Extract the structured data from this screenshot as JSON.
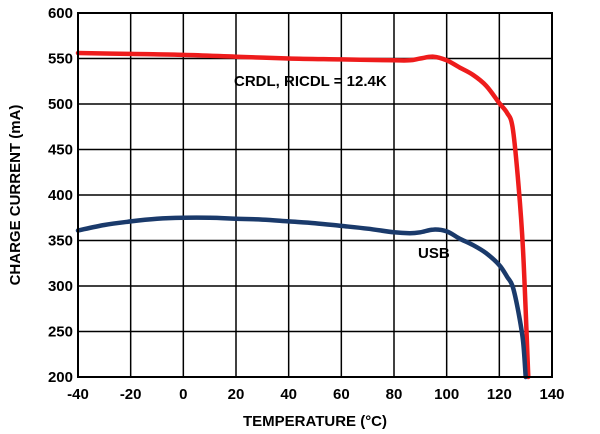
{
  "chart_data": {
    "type": "line",
    "xlabel": "TEMPERATURE (°C)",
    "ylabel": "CHARGE CURRENT (mA)",
    "xlim": [
      -40,
      140
    ],
    "ylim": [
      200,
      600
    ],
    "xticks": [
      -40,
      -20,
      0,
      20,
      40,
      60,
      80,
      100,
      120,
      140
    ],
    "yticks": [
      200,
      250,
      300,
      350,
      400,
      450,
      500,
      550,
      600
    ],
    "grid": true,
    "series": [
      {
        "name": "CRDL, RICDL = 12.4K",
        "color": "#ee1c1c",
        "x": [
          -40,
          -20,
          0,
          20,
          40,
          60,
          80,
          86,
          90,
          95,
          100,
          105,
          110,
          115,
          120,
          123,
          125,
          127,
          129,
          131
        ],
        "y": [
          556,
          555,
          554,
          552,
          550,
          549,
          548,
          548,
          550,
          552,
          548,
          540,
          532,
          520,
          501,
          490,
          475,
          420,
          340,
          200
        ]
      },
      {
        "name": "USB",
        "color": "#1a3a6b",
        "x": [
          -40,
          -30,
          -20,
          -10,
          0,
          10,
          20,
          30,
          40,
          50,
          60,
          70,
          80,
          86,
          90,
          95,
          100,
          105,
          110,
          115,
          120,
          123,
          125,
          127,
          129,
          130
        ],
        "y": [
          361,
          367,
          371,
          374,
          375,
          375,
          374,
          373,
          371,
          369,
          366,
          363,
          359,
          358,
          359,
          362,
          360,
          352,
          345,
          336,
          323,
          310,
          300,
          275,
          240,
          200
        ]
      }
    ],
    "annotations": [
      {
        "text": "CRDL, RICDL = 12.4K",
        "series": 0
      },
      {
        "text": "USB",
        "series": 1
      }
    ]
  }
}
